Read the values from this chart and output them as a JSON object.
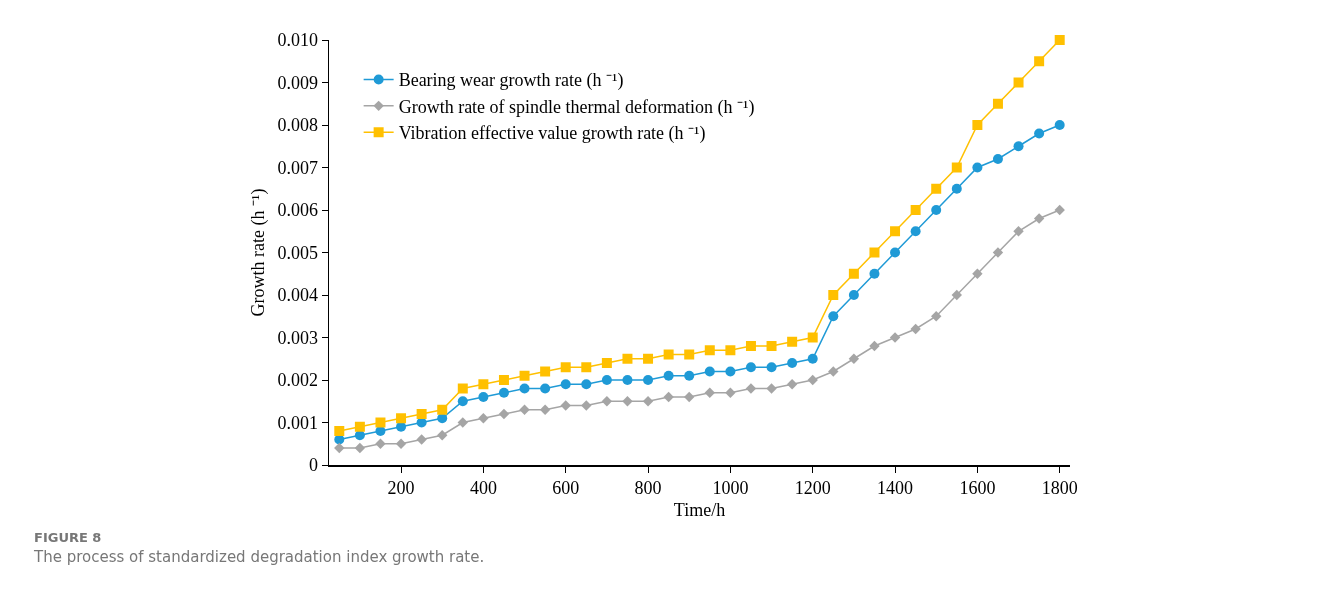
{
  "chart_data": {
    "type": "line",
    "xlabel": "Time/h",
    "ylabel": "Growth rate (h ⁻¹)",
    "annotations": [
      "FIGURE 8",
      "The process of standardized degradation index growth rate."
    ],
    "x": [
      50,
      100,
      150,
      200,
      250,
      300,
      350,
      400,
      450,
      500,
      550,
      600,
      650,
      700,
      750,
      800,
      850,
      900,
      950,
      1000,
      1050,
      1100,
      1150,
      1200,
      1250,
      1300,
      1350,
      1400,
      1450,
      1500,
      1550,
      1600,
      1650,
      1700,
      1750,
      1800
    ],
    "xlim": [
      25,
      1825
    ],
    "xticks": [
      200,
      400,
      600,
      800,
      1000,
      1200,
      1400,
      1600,
      1800
    ],
    "ylim": [
      0,
      0.01
    ],
    "yticks": [
      {
        "value": 0,
        "label": "0"
      },
      {
        "value": 0.001,
        "label": "0.001"
      },
      {
        "value": 0.002,
        "label": "0.002"
      },
      {
        "value": 0.003,
        "label": "0.003"
      },
      {
        "value": 0.004,
        "label": "0.004"
      },
      {
        "value": 0.005,
        "label": "0.005"
      },
      {
        "value": 0.006,
        "label": "0.006"
      },
      {
        "value": 0.007,
        "label": "0.007"
      },
      {
        "value": 0.008,
        "label": "0.008"
      },
      {
        "value": 0.009,
        "label": "0.009"
      },
      {
        "value": 0.01,
        "label": "0.010"
      }
    ],
    "grid": false,
    "legend": "top left",
    "line_style": "solid",
    "series": [
      {
        "name": "Bearing wear growth rate (h ⁻¹)",
        "color": "#1f9ad6",
        "marker": "circle",
        "values": [
          0.0006,
          0.0007,
          0.0008,
          0.0009,
          0.001,
          0.0011,
          0.0015,
          0.0016,
          0.0017,
          0.0018,
          0.0018,
          0.0019,
          0.0019,
          0.002,
          0.002,
          0.002,
          0.0021,
          0.0021,
          0.0022,
          0.0022,
          0.0023,
          0.0023,
          0.0024,
          0.0025,
          0.0035,
          0.004,
          0.0045,
          0.005,
          0.0055,
          0.006,
          0.0065,
          0.007,
          0.0072,
          0.0075,
          0.0078,
          0.008
        ]
      },
      {
        "name": "Growth rate of spindle thermal deformation (h ⁻¹)",
        "color": "#a5a5a5",
        "marker": "diamond",
        "values": [
          0.0004,
          0.0004,
          0.0005,
          0.0005,
          0.0006,
          0.0007,
          0.001,
          0.0011,
          0.0012,
          0.0013,
          0.0013,
          0.0014,
          0.0014,
          0.0015,
          0.0015,
          0.0015,
          0.0016,
          0.0016,
          0.0017,
          0.0017,
          0.0018,
          0.0018,
          0.0019,
          0.002,
          0.0022,
          0.0025,
          0.0028,
          0.003,
          0.0032,
          0.0035,
          0.004,
          0.0045,
          0.005,
          0.0055,
          0.0058,
          0.006
        ]
      },
      {
        "name": "Vibration effective value growth rate (h ⁻¹)",
        "color": "#ffc000",
        "marker": "square",
        "values": [
          0.0008,
          0.0009,
          0.001,
          0.0011,
          0.0012,
          0.0013,
          0.0018,
          0.0019,
          0.002,
          0.0021,
          0.0022,
          0.0023,
          0.0023,
          0.0024,
          0.0025,
          0.0025,
          0.0026,
          0.0026,
          0.0027,
          0.0027,
          0.0028,
          0.0028,
          0.0029,
          0.003,
          0.004,
          0.0045,
          0.005,
          0.0055,
          0.006,
          0.0065,
          0.007,
          0.008,
          0.0085,
          0.009,
          0.0095,
          0.01
        ]
      }
    ]
  }
}
